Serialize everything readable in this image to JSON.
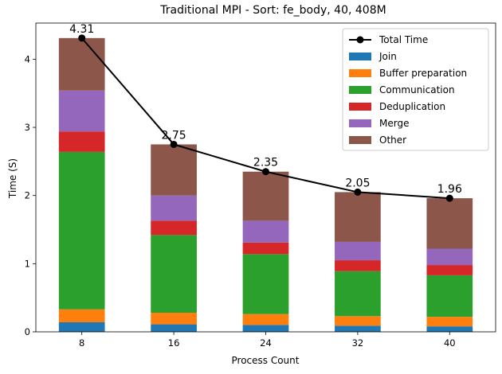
{
  "chart_data": {
    "type": "bar",
    "stacked": true,
    "title": "Traditional MPI - Sort: fe_body, 40, 408M",
    "xlabel": "Process Count",
    "ylabel": "Time (S)",
    "categories": [
      "8",
      "16",
      "24",
      "32",
      "40"
    ],
    "ylim": [
      0,
      4.53
    ],
    "yticks": [
      0,
      1,
      2,
      3,
      4
    ],
    "grid": false,
    "legend_position": "top-right",
    "series": [
      {
        "name": "Join",
        "color": "#1f77b4",
        "values": [
          0.14,
          0.11,
          0.1,
          0.09,
          0.08
        ]
      },
      {
        "name": "Buffer preparation",
        "color": "#ff7f0e",
        "values": [
          0.19,
          0.17,
          0.16,
          0.14,
          0.14
        ]
      },
      {
        "name": "Communication",
        "color": "#2ca02c",
        "values": [
          2.31,
          1.14,
          0.88,
          0.66,
          0.61
        ]
      },
      {
        "name": "Deduplication",
        "color": "#d62728",
        "values": [
          0.3,
          0.21,
          0.17,
          0.16,
          0.15
        ]
      },
      {
        "name": "Merge",
        "color": "#9467bd",
        "values": [
          0.6,
          0.37,
          0.32,
          0.27,
          0.24
        ]
      },
      {
        "name": "Other",
        "color": "#8c564b",
        "values": [
          0.77,
          0.75,
          0.72,
          0.73,
          0.74
        ]
      }
    ],
    "line": {
      "name": "Total Time",
      "color": "#000000",
      "values": [
        4.31,
        2.75,
        2.35,
        2.05,
        1.96
      ],
      "labels": [
        "4.31",
        "2.75",
        "2.35",
        "2.05",
        "1.96"
      ]
    }
  }
}
